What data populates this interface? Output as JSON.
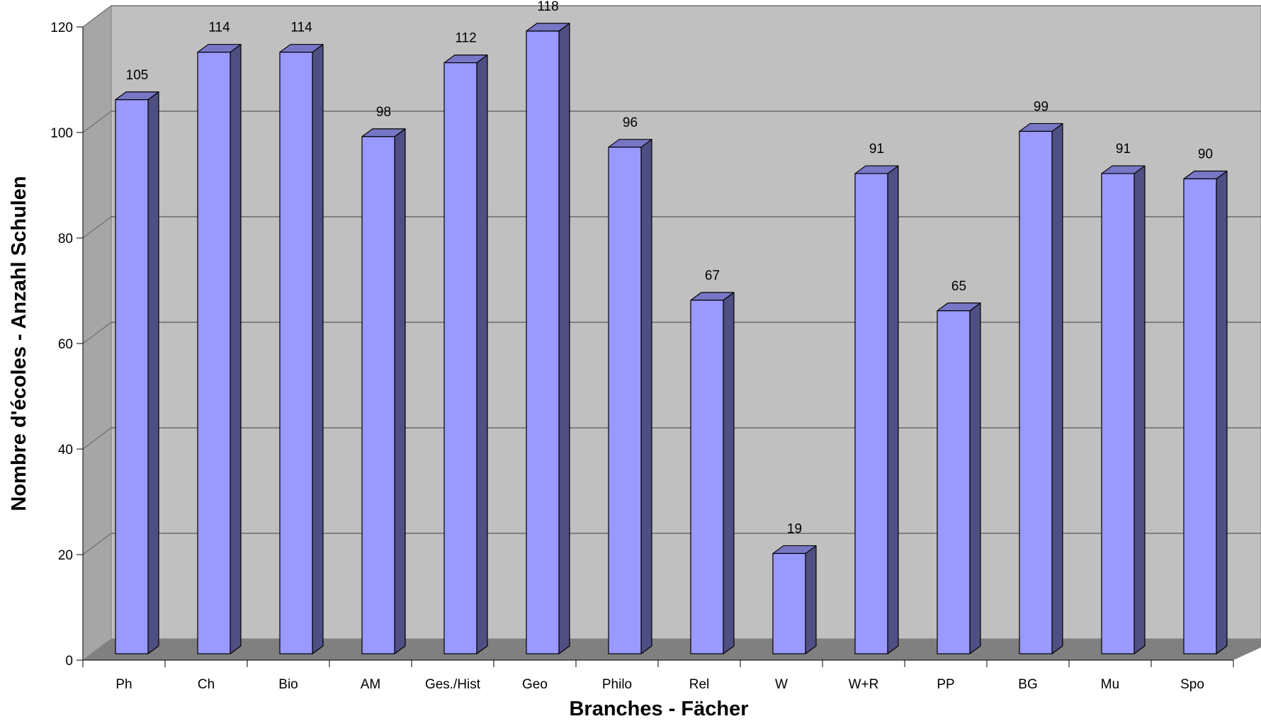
{
  "chart_data": {
    "type": "bar",
    "style": "3d-column",
    "xlabel": "Branches - Fächer",
    "ylabel": "Nombre d'écoles - Anzahl Schulen",
    "ylim": [
      0,
      120
    ],
    "yticks": [
      0,
      20,
      40,
      60,
      80,
      100,
      120
    ],
    "grid": true,
    "categories": [
      "Ph",
      "Ch",
      "Bio",
      "AM",
      "Ges./Hist",
      "Geo",
      "Philo",
      "Rel",
      "W",
      "W+R",
      "PP",
      "BG",
      "Mu",
      "Spo"
    ],
    "values": [
      105,
      114,
      114,
      98,
      112,
      118,
      96,
      67,
      19,
      91,
      65,
      99,
      91,
      90
    ],
    "labels": [
      "105",
      "114",
      "114",
      "98",
      "112",
      "118",
      "96",
      "67",
      "19",
      "91",
      "65",
      "99",
      "91",
      "90"
    ]
  },
  "colors": {
    "bar_front": "#9999ff",
    "bar_side": "#4f4f83",
    "bar_top": "#7777c6",
    "wall": "#c0c0c0",
    "floor": "#808080",
    "side_wall": "#a6a6a6",
    "gridline": "#404040"
  }
}
